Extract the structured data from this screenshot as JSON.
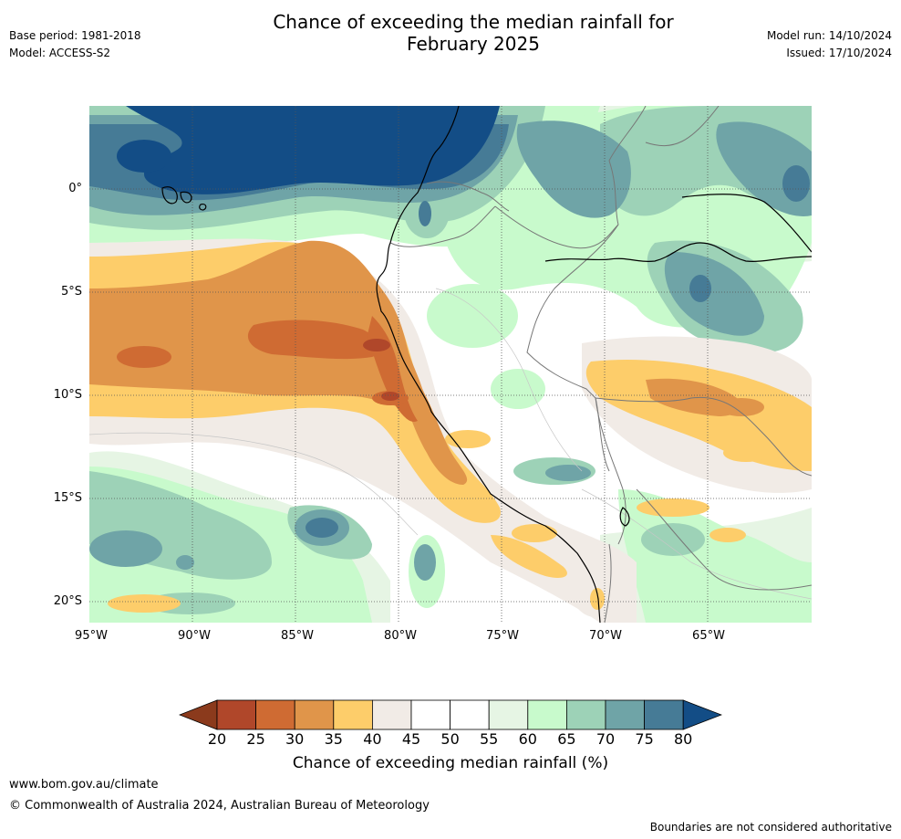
{
  "title_line1": "Chance of exceeding the median rainfall for",
  "title_line2": "February 2025",
  "base_period": "Base period: 1981-2018",
  "model": "Model: ACCESS-S2",
  "model_run": "Model run: 14/10/2024",
  "issued": "Issued: 17/10/2024",
  "lat_labels": [
    "0°",
    "5°S",
    "10°S",
    "15°S",
    "20°S"
  ],
  "lon_labels": [
    "95°W",
    "90°W",
    "85°W",
    "80°W",
    "75°W",
    "70°W",
    "65°W"
  ],
  "colorbar": {
    "ticks": [
      "20",
      "25",
      "30",
      "35",
      "40",
      "45",
      "50",
      "55",
      "60",
      "65",
      "70",
      "75",
      "80"
    ],
    "colors": [
      "#8b3a1c",
      "#b0472a",
      "#cf6b33",
      "#e0954a",
      "#fdcd6a",
      "#f1ebe6",
      "#ffffff",
      "#ffffff",
      "#e6f5e4",
      "#c8facc",
      "#9dd2b7",
      "#6fa4a7",
      "#467b96",
      "#134d86"
    ],
    "label": "Chance of exceeding median rainfall (%)"
  },
  "footer": {
    "url": "www.bom.gov.au/climate",
    "copyright": "© Commonwealth of Australia 2024, Australian Bureau of Meteorology",
    "note": "Boundaries are not considered authoritative"
  }
}
